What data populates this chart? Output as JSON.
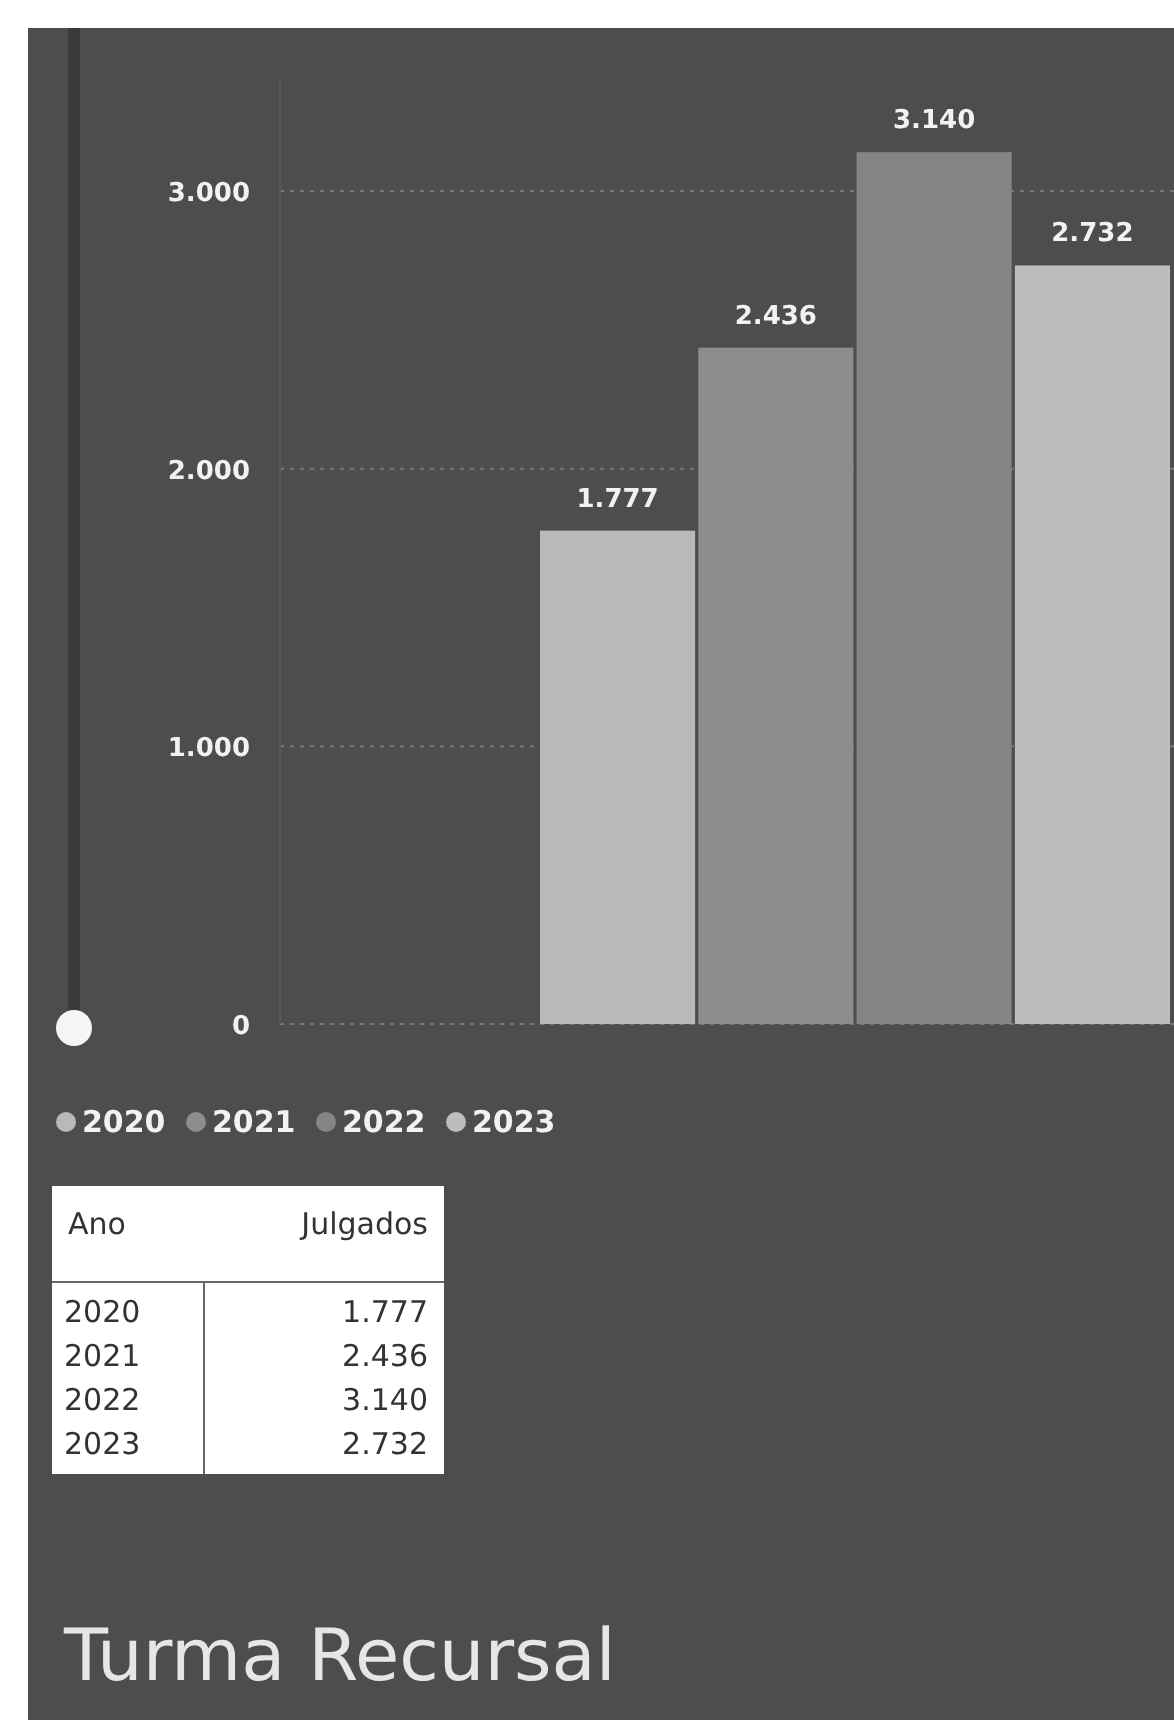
{
  "chart_data": {
    "type": "bar",
    "title": "Turma Recursal",
    "categories": [
      null
    ],
    "series": [
      {
        "name": "2020",
        "color": "#b9b9b9",
        "values": [
          1777
        ],
        "value_labels": [
          "1.777"
        ]
      },
      {
        "name": "2021",
        "color": "#8c8c8c",
        "values": [
          2436
        ],
        "value_labels": [
          "2.436"
        ]
      },
      {
        "name": "2022",
        "color": "#858585",
        "values": [
          3140
        ],
        "value_labels": [
          "3.140"
        ]
      },
      {
        "name": "2023",
        "color": "#bdbdbd",
        "values": [
          2732
        ],
        "value_labels": [
          "2.732"
        ]
      }
    ],
    "ylim": [
      0,
      3400
    ],
    "yticks": [
      0,
      {
        "value": 1000,
        "label": "1.000"
      },
      {
        "value": 2000,
        "label": "2.000"
      },
      {
        "value": 3000,
        "label": "3.000"
      }
    ],
    "grid": "y",
    "legend": "bottom",
    "annotations": [
      "Ano",
      "Julgados"
    ]
  }
}
